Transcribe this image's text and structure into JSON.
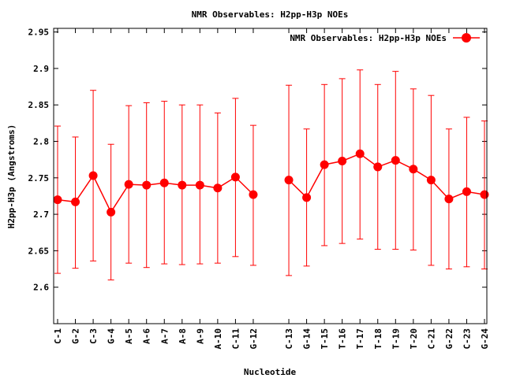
{
  "chart_data": {
    "type": "line",
    "title": "NMR Observables: H2pp-H3p NOEs",
    "xlabel": "Nucleotide",
    "ylabel": "H2pp-H3p (Angstroms)",
    "ylim": [
      2.55,
      2.955
    ],
    "yticks": [
      "2.6",
      "2.65",
      "2.7",
      "2.75",
      "2.8",
      "2.85",
      "2.9",
      "2.95"
    ],
    "legend": {
      "position": "top-right",
      "label": "NMR Observables: H2pp-H3p NOEs"
    },
    "grid": false,
    "series_color": "#ff0000",
    "categories": [
      "C-1",
      "G-2",
      "C-3",
      "G-4",
      "A-5",
      "A-6",
      "A-7",
      "A-8",
      "A-9",
      "A-10",
      "C-11",
      "G-12",
      "C-13",
      "G-14",
      "T-15",
      "T-16",
      "T-17",
      "T-18",
      "T-19",
      "T-20",
      "C-21",
      "G-22",
      "C-23",
      "G-24"
    ],
    "series": [
      {
        "name": "NMR Observables: H2pp-H3p NOEs",
        "values": [
          2.72,
          2.717,
          2.753,
          2.703,
          2.741,
          2.74,
          2.743,
          2.74,
          2.74,
          2.736,
          2.751,
          2.727,
          2.747,
          2.723,
          2.768,
          2.773,
          2.783,
          2.765,
          2.774,
          2.762,
          2.747,
          2.721,
          2.731,
          2.727
        ],
        "err_low": [
          2.619,
          2.626,
          2.636,
          2.61,
          2.633,
          2.627,
          2.632,
          2.631,
          2.632,
          2.633,
          2.642,
          2.63,
          2.616,
          2.629,
          2.657,
          2.66,
          2.666,
          2.652,
          2.652,
          2.651,
          2.63,
          2.625,
          2.628,
          2.625
        ],
        "err_high": [
          2.821,
          2.806,
          2.87,
          2.796,
          2.849,
          2.853,
          2.855,
          2.85,
          2.85,
          2.839,
          2.859,
          2.822,
          2.877,
          2.817,
          2.878,
          2.886,
          2.898,
          2.878,
          2.896,
          2.872,
          2.863,
          2.817,
          2.833,
          2.828
        ]
      }
    ],
    "gap_after_index": 11
  }
}
